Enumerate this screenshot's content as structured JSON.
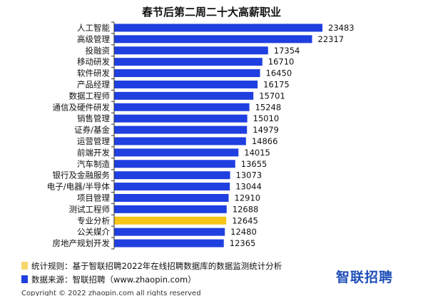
{
  "chart_data": {
    "type": "bar",
    "orientation": "horizontal",
    "title": "春节后第二周二十大高薪职业",
    "categories": [
      "人工智能",
      "高级管理",
      "投融资",
      "移动研发",
      "软件研发",
      "产品经理",
      "数据工程师",
      "通信及硬件研发",
      "销售管理",
      "证券/基金",
      "运营管理",
      "前端开发",
      "汽车制造",
      "银行及金融服务",
      "电子/电器/半导体",
      "项目管理",
      "测试工程师",
      "专业分析",
      "公关媒介",
      "房地产规划开发"
    ],
    "values": [
      23483,
      22317,
      17354,
      16710,
      16450,
      16175,
      15701,
      15248,
      15010,
      14979,
      14866,
      14015,
      13655,
      13073,
      13044,
      12910,
      12688,
      12645,
      12480,
      12365
    ],
    "highlight_category": "专业分析",
    "xlim": [
      0,
      24500
    ],
    "grid": false,
    "legend": "none"
  },
  "colors": {
    "bar": "#1f3fe0",
    "highlight": "#f5c518",
    "axis": "#333333"
  },
  "notes": [
    {
      "swatch": "#f5d76e",
      "text": "统计规则：基于智联招聘2022年在线招聘数据库的数据监测统计分析"
    },
    {
      "swatch": "#1f3fe0",
      "text": "数据来源：智联招聘（www.zhaopin.com）"
    }
  ],
  "brand": "智联招聘",
  "copyright": "Copyright © 2022 zhaopin.com all rights reserved"
}
